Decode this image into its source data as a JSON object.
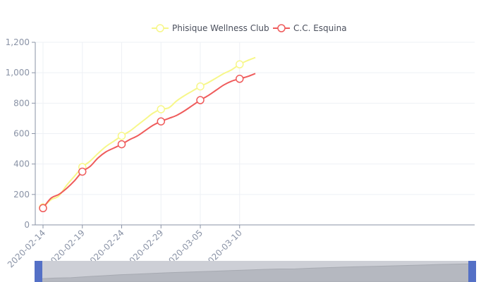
{
  "chart_data": {
    "type": "line",
    "title": "",
    "xlabel": "",
    "ylabel": "",
    "ylim": [
      0,
      1200
    ],
    "y_ticks": [
      "0",
      "200",
      "400",
      "600",
      "800",
      "1,000",
      "1,200"
    ],
    "x_tick_labels": [
      "2020-02-14",
      "2020-02-19",
      "2020-02-24",
      "2020-02-29",
      "2020-03-05",
      "2020-03-10"
    ],
    "x": [
      "2020-02-14",
      "2020-02-15",
      "2020-02-16",
      "2020-02-17",
      "2020-02-18",
      "2020-02-19",
      "2020-02-20",
      "2020-02-21",
      "2020-02-22",
      "2020-02-23",
      "2020-02-24",
      "2020-02-25",
      "2020-02-26",
      "2020-02-27",
      "2020-02-28",
      "2020-02-29",
      "2020-03-01",
      "2020-03-02",
      "2020-03-03",
      "2020-03-04",
      "2020-03-05",
      "2020-03-06",
      "2020-03-07",
      "2020-03-08",
      "2020-03-09",
      "2020-03-10",
      "2020-03-11",
      "2020-03-12"
    ],
    "legend_position": "top-center",
    "grid": true,
    "series": [
      {
        "name": "Phisique Wellness Club",
        "color": "#f7f78a",
        "values": [
          115,
          165,
          190,
          260,
          320,
          380,
          420,
          470,
          515,
          550,
          585,
          615,
          655,
          695,
          735,
          760,
          770,
          815,
          850,
          880,
          910,
          935,
          965,
          995,
          1020,
          1055,
          1080,
          1100
        ]
      },
      {
        "name": "C.C. Esquina",
        "color": "#ef5b5b",
        "values": [
          110,
          175,
          200,
          240,
          290,
          350,
          385,
          440,
          480,
          505,
          530,
          560,
          585,
          620,
          655,
          680,
          700,
          720,
          750,
          785,
          820,
          850,
          885,
          920,
          945,
          960,
          975,
          995
        ]
      }
    ],
    "marker_indices": [
      0,
      5,
      10,
      15,
      20,
      25
    ],
    "datazoom": {
      "start_fraction": 0,
      "end_fraction": 1
    }
  }
}
